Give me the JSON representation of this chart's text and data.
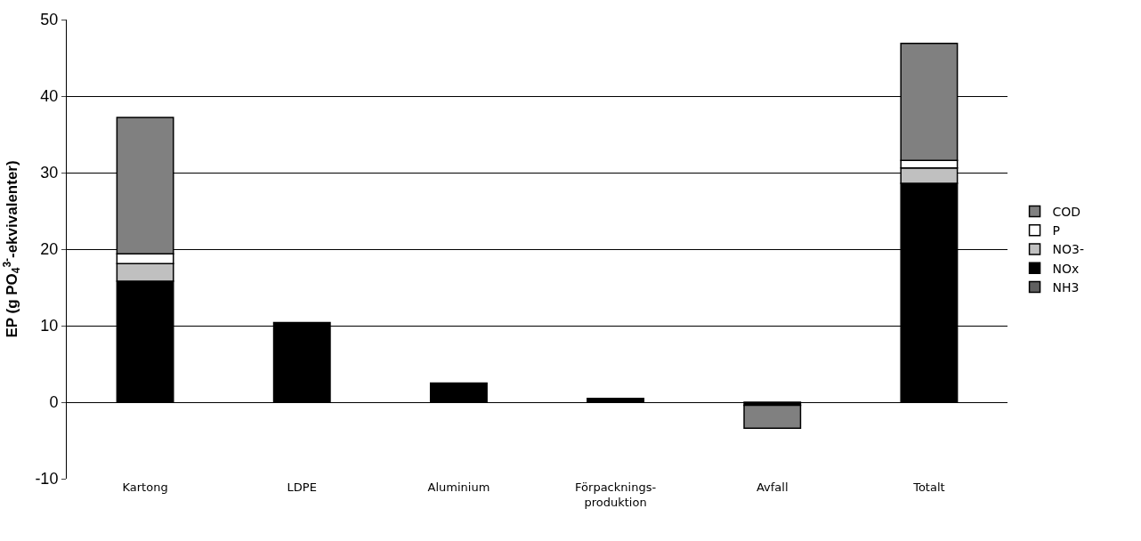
{
  "chart_data": {
    "type": "bar",
    "stacked": true,
    "ylabel": "EP (g PO$_{4}$$^{3-}$-ekvivalenter)",
    "categories": [
      "Kartong",
      "LDPE",
      "Aluminium",
      "Förpacknings-\nproduktion",
      "Avfall",
      "Totalt"
    ],
    "series": [
      {
        "name": "NH3",
        "color": "#606060",
        "values": [
          null,
          null,
          null,
          null,
          null,
          null
        ]
      },
      {
        "name": "NOx",
        "color": "#000000",
        "values": [
          15.8,
          10.4,
          2.5,
          0.5,
          -0.4,
          28.6
        ]
      },
      {
        "name": "NO3-",
        "color": "#c0c0c0",
        "values": [
          2.3,
          null,
          null,
          null,
          null,
          2.0
        ]
      },
      {
        "name": "P",
        "color": "#ffffff",
        "values": [
          1.3,
          null,
          null,
          null,
          null,
          1.0
        ]
      },
      {
        "name": "COD",
        "color": "#808080",
        "values": [
          17.8,
          null,
          null,
          null,
          -3.0,
          15.3
        ]
      }
    ],
    "ylim": [
      -10,
      50
    ],
    "yticks": [
      -10,
      0,
      10,
      20,
      30,
      40,
      50
    ],
    "grid": "y",
    "legend": "right"
  }
}
